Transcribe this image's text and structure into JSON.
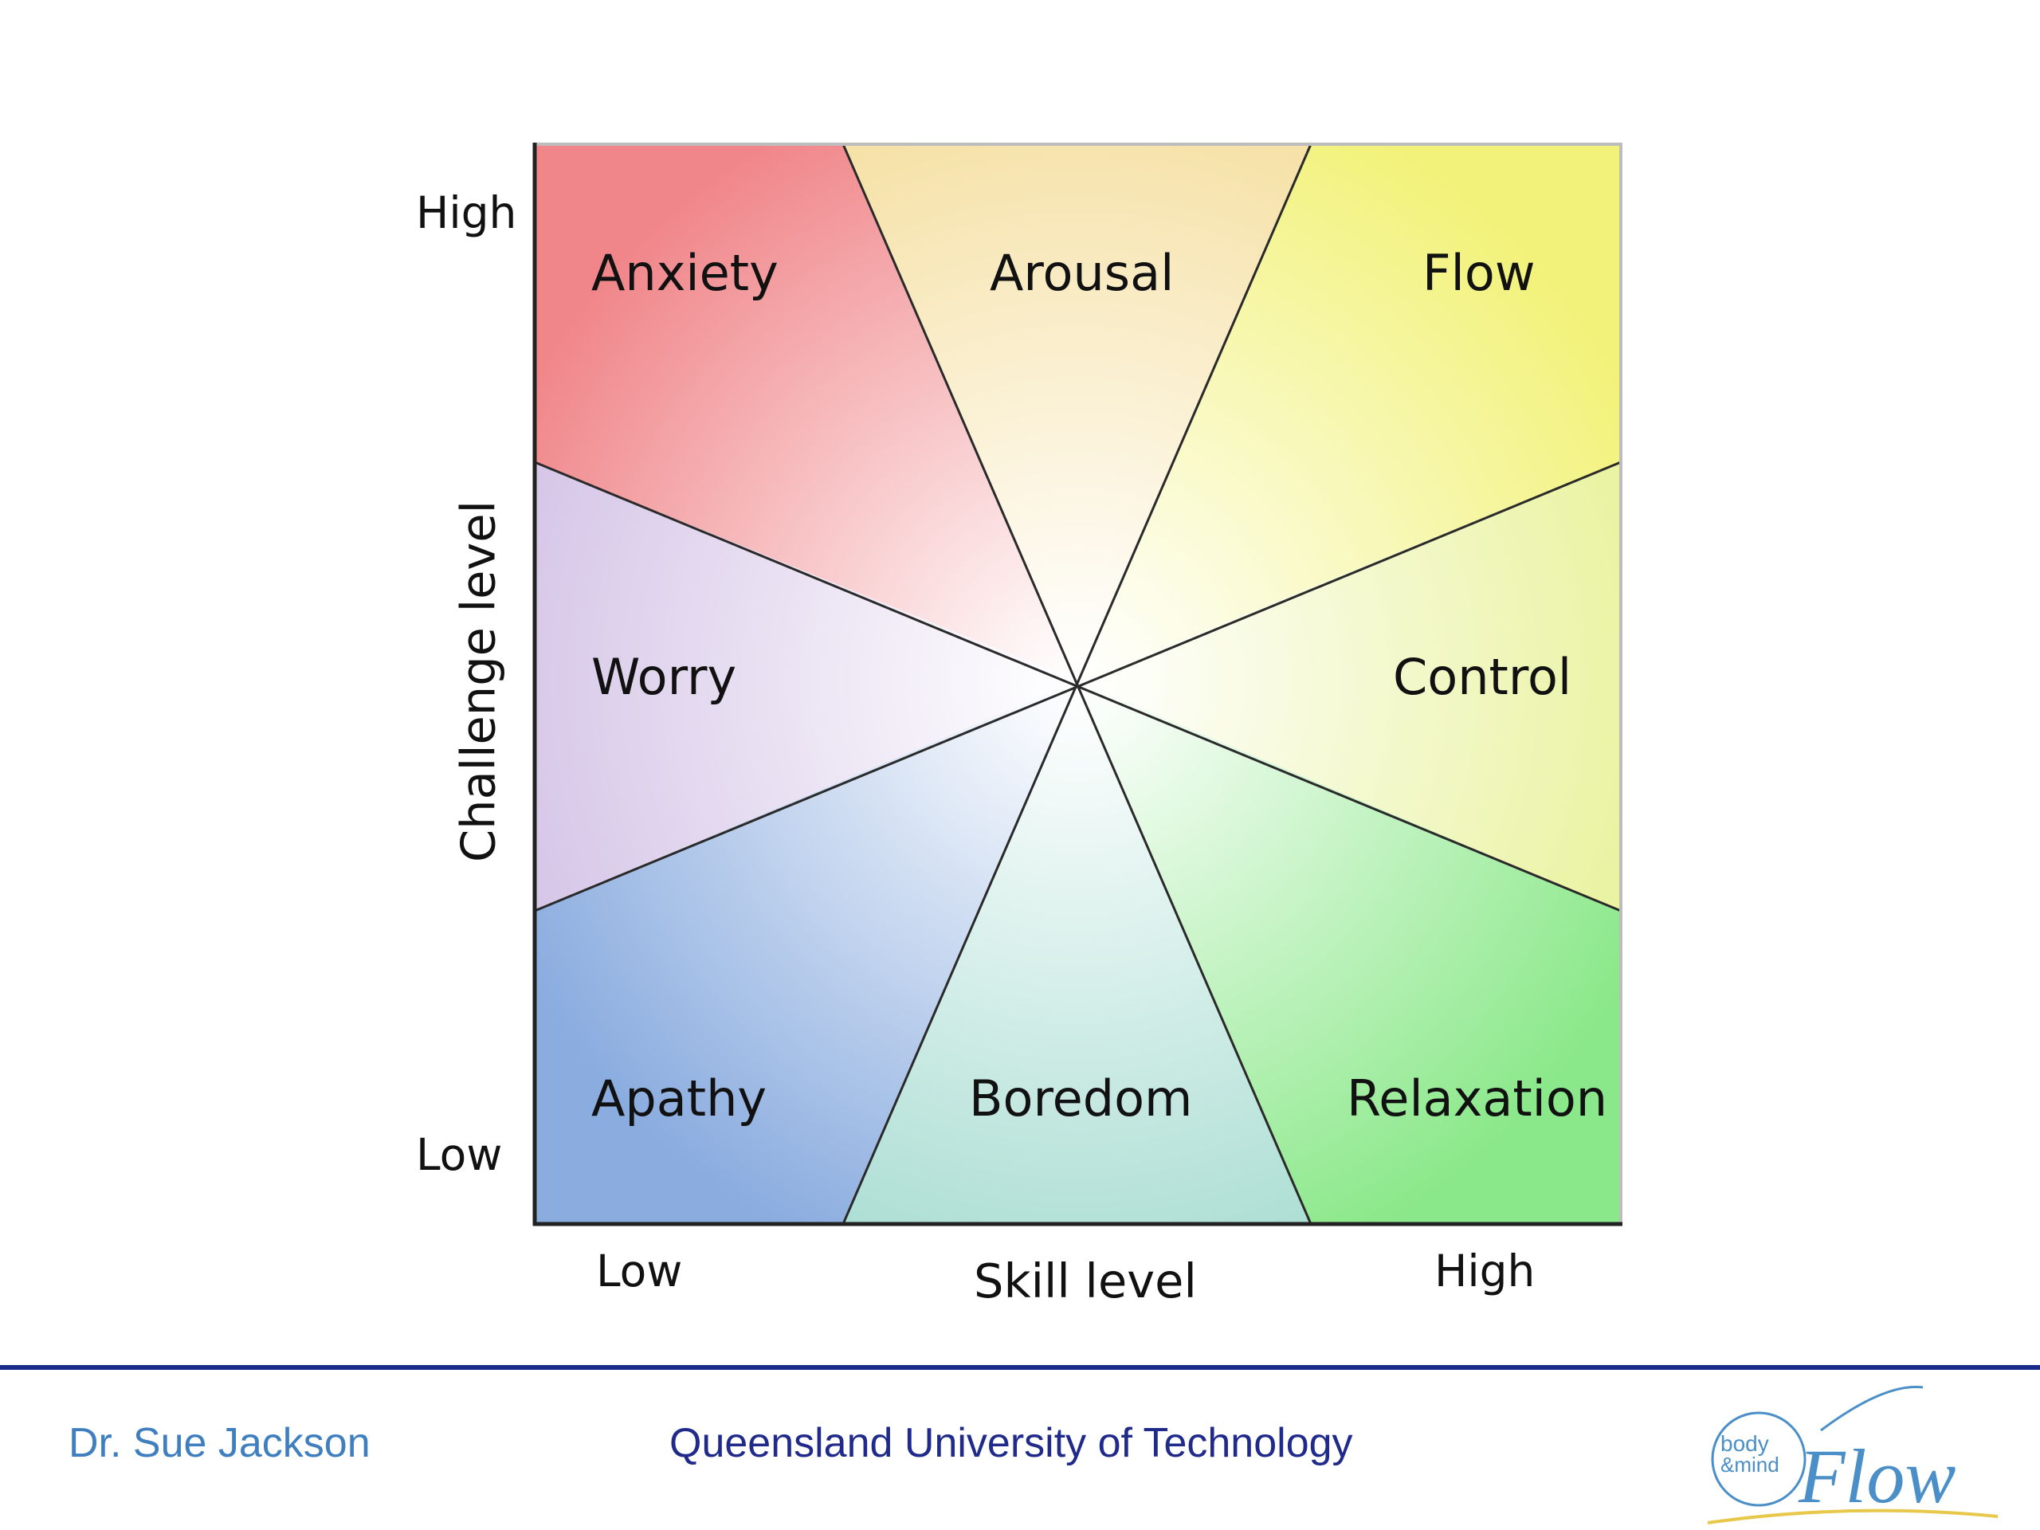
{
  "diagram": {
    "regions": [
      {
        "id": "anxiety",
        "label": "Anxiety",
        "color": "#f0868a"
      },
      {
        "id": "arousal",
        "label": "Arousal",
        "color": "#f5dfa0"
      },
      {
        "id": "flow",
        "label": "Flow",
        "color": "#f2f27a"
      },
      {
        "id": "control",
        "label": "Control",
        "color": "#e8f29a"
      },
      {
        "id": "relaxation",
        "label": "Relaxation",
        "color": "#8be88a"
      },
      {
        "id": "boredom",
        "label": "Boredom",
        "color": "#a9ddd2"
      },
      {
        "id": "apathy",
        "label": "Apathy",
        "color": "#8aacdf"
      },
      {
        "id": "worry",
        "label": "Worry",
        "color": "#d3c2e6"
      }
    ],
    "y_axis": {
      "title": "Challenge level",
      "high": "High",
      "low": "Low"
    },
    "x_axis": {
      "title": "Skill level",
      "low": "Low",
      "high": "High"
    }
  },
  "footer": {
    "author": "Dr. Sue Jackson",
    "institution": "Queensland University of Technology",
    "accent_color": "#1a2b8c"
  },
  "logo": {
    "line1": "body",
    "line2": "&mind",
    "word": "Flow",
    "color": "#4a8fc7",
    "swoosh_color": "#e8c84a"
  }
}
